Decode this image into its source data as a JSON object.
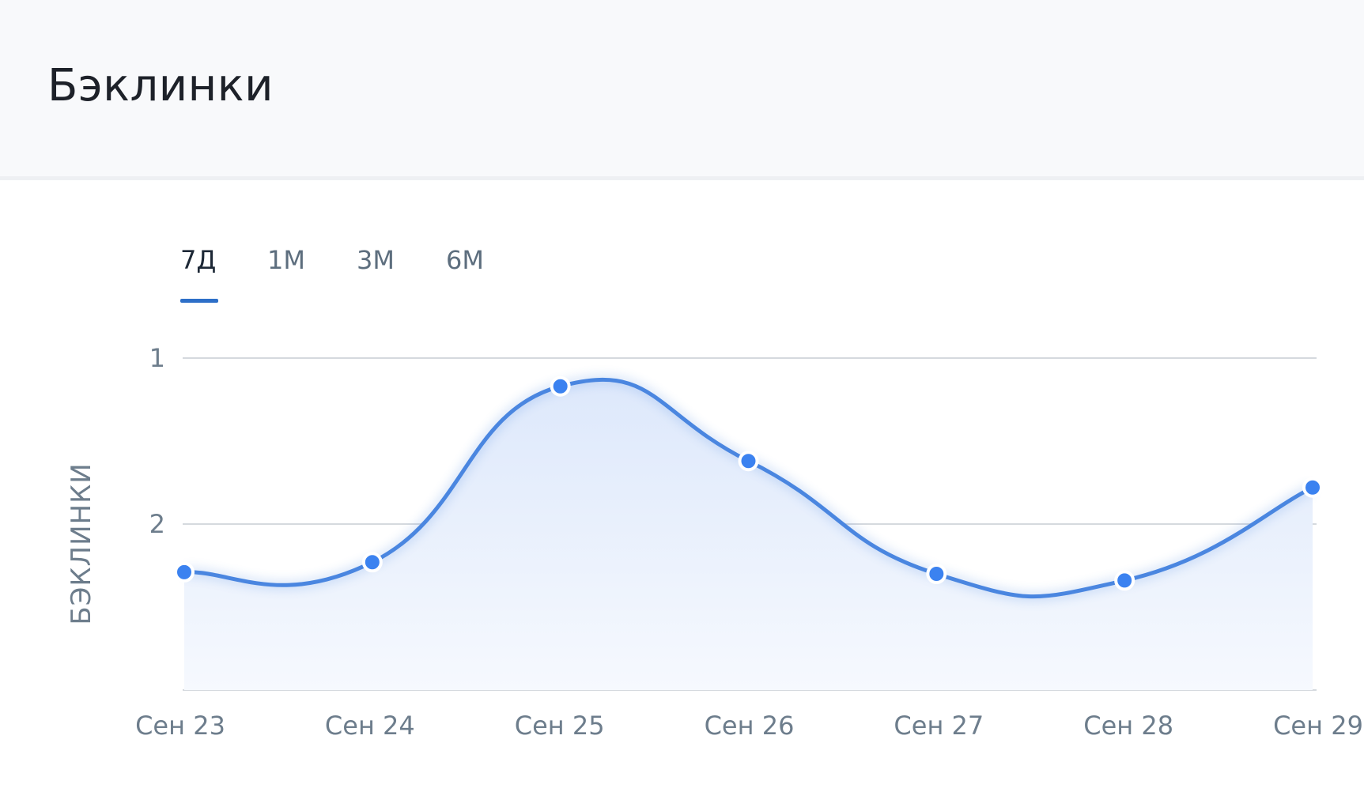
{
  "header": {
    "title": "Бэклинки"
  },
  "tabs": [
    {
      "label": "7Д",
      "active": true
    },
    {
      "label": "1М",
      "active": false
    },
    {
      "label": "3М",
      "active": false
    },
    {
      "label": "6М",
      "active": false
    }
  ],
  "colors": {
    "line": "#4a86e0",
    "point": "#3b82f0",
    "area_top": "#dde8fb",
    "area_bottom": "#f6f9fe",
    "grid": "#d5d9de",
    "tab_underline": "#2d6fc8"
  },
  "chart_data": {
    "type": "area",
    "ylabel": "БЭКЛИНКИ",
    "y_reversed": true,
    "y_ticks": [
      1,
      2
    ],
    "ylim": [
      1,
      3
    ],
    "grid": true,
    "x": [
      "Сен 23",
      "Сен 24",
      "Сен 25",
      "Сен 26",
      "Сен 27",
      "Сен 28",
      "Сен 29"
    ],
    "series": [
      {
        "values": [
          2.29,
          2.23,
          1.17,
          1.62,
          2.3,
          2.34,
          1.78
        ]
      }
    ]
  }
}
